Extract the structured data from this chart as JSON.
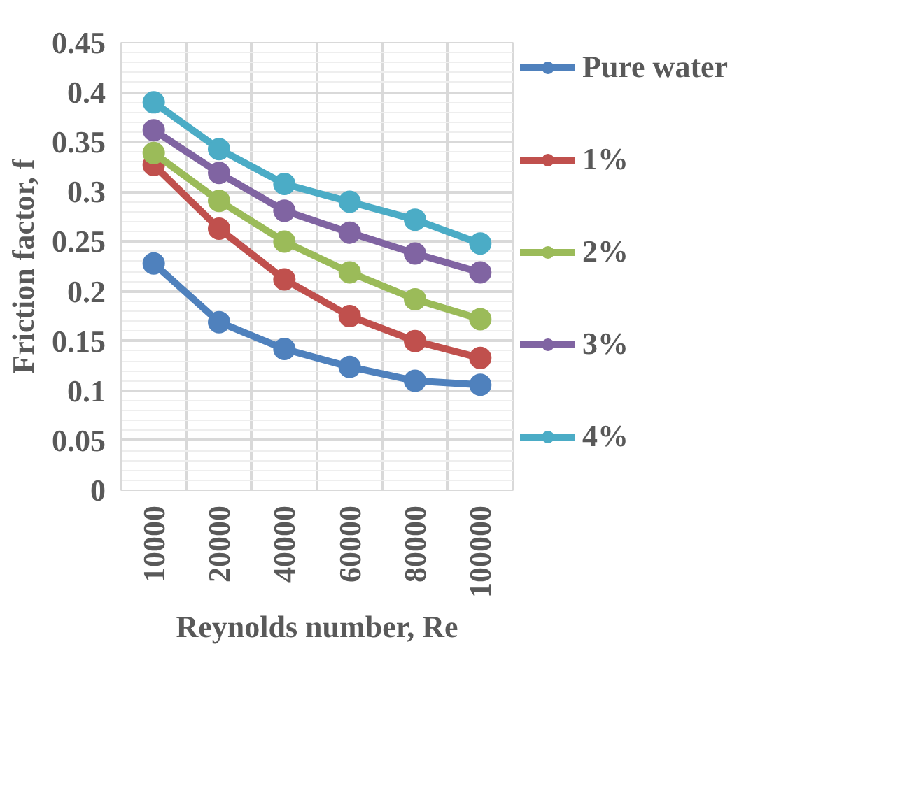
{
  "chart_data": {
    "type": "line",
    "xlabel": "Reynolds number, Re",
    "ylabel": "Friction factor, f",
    "categories": [
      "10000",
      "20000",
      "40000",
      "60000",
      "80000",
      "100000"
    ],
    "ylim": [
      0,
      0.45
    ],
    "yticks": [
      0,
      0.05,
      0.1,
      0.15,
      0.2,
      0.25,
      0.3,
      0.35,
      0.4,
      0.45
    ],
    "grid": true,
    "legend": "right",
    "marker": "circle",
    "line_style": "solid",
    "series": [
      {
        "name": "Pure water",
        "color": "#4f81bd",
        "values": [
          0.228,
          0.169,
          0.142,
          0.124,
          0.11,
          0.106
        ]
      },
      {
        "name": "1%",
        "color": "#c0504d",
        "values": [
          0.327,
          0.263,
          0.212,
          0.175,
          0.15,
          0.133
        ]
      },
      {
        "name": "2%",
        "color": "#9bbb59",
        "values": [
          0.339,
          0.291,
          0.25,
          0.219,
          0.192,
          0.172
        ]
      },
      {
        "name": "3%",
        "color": "#8064a2",
        "values": [
          0.362,
          0.319,
          0.281,
          0.259,
          0.238,
          0.219
        ]
      },
      {
        "name": "4%",
        "color": "#4bacc6",
        "values": [
          0.39,
          0.343,
          0.308,
          0.29,
          0.272,
          0.248
        ]
      }
    ]
  }
}
